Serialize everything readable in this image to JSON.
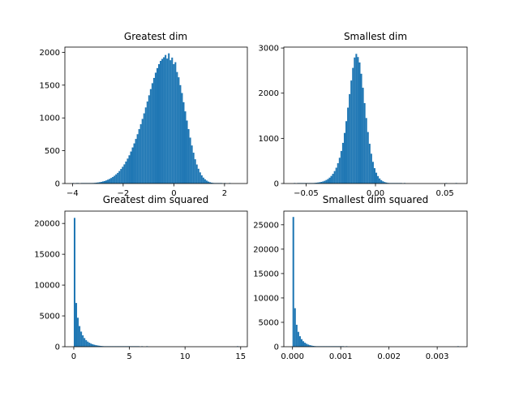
{
  "chart_data": [
    {
      "type": "bar",
      "title": "Greatest dim",
      "xlabel": "",
      "ylabel": "",
      "xlim": [
        -4.3,
        2.9
      ],
      "ylim": [
        0,
        2080
      ],
      "xticks": [
        {
          "v": -4,
          "label": "−4"
        },
        {
          "v": -2,
          "label": "−2"
        },
        {
          "v": 0,
          "label": "0"
        },
        {
          "v": 2,
          "label": "2"
        }
      ],
      "yticks": [
        {
          "v": 0,
          "label": "0"
        },
        {
          "v": 500,
          "label": "500"
        },
        {
          "v": 1000,
          "label": "1000"
        },
        {
          "v": 1500,
          "label": "1500"
        },
        {
          "v": 2000,
          "label": "2000"
        }
      ],
      "bin_start": -4.0,
      "bin_width": 0.065,
      "values": [
        2,
        0,
        1,
        1,
        0,
        2,
        1,
        3,
        2,
        4,
        5,
        7,
        8,
        10,
        13,
        16,
        20,
        25,
        32,
        38,
        47,
        58,
        70,
        84,
        100,
        118,
        140,
        162,
        190,
        222,
        255,
        292,
        335,
        380,
        430,
        488,
        550,
        612,
        680,
        752,
        830,
        905,
        985,
        1070,
        1160,
        1250,
        1345,
        1440,
        1530,
        1610,
        1690,
        1760,
        1820,
        1870,
        1900,
        1925,
        1960,
        1905,
        1985,
        1880,
        1920,
        1820,
        1850,
        1700,
        1620,
        1500,
        1380,
        1240,
        1100,
        960,
        830,
        700,
        580,
        470,
        370,
        290,
        225,
        170,
        125,
        90,
        65,
        45,
        30,
        20,
        13,
        9,
        5,
        3,
        2,
        1,
        1,
        0,
        1,
        0,
        0,
        1
      ]
    },
    {
      "type": "bar",
      "title": "Smallest dim",
      "xlabel": "",
      "ylabel": "",
      "xlim": [
        -0.066,
        0.066
      ],
      "ylim": [
        0,
        3020
      ],
      "xticks": [
        {
          "v": -0.05,
          "label": "−0.05"
        },
        {
          "v": 0,
          "label": "0.00"
        },
        {
          "v": 0.05,
          "label": "0.05"
        }
      ],
      "yticks": [
        {
          "v": 0,
          "label": "0"
        },
        {
          "v": 1000,
          "label": "1000"
        },
        {
          "v": 2000,
          "label": "2000"
        },
        {
          "v": 3000,
          "label": "3000"
        }
      ],
      "bin_start": -0.06,
      "bin_width": 0.0012,
      "values": [
        0,
        1,
        0,
        1,
        1,
        2,
        2,
        3,
        3,
        5,
        6,
        8,
        10,
        13,
        17,
        22,
        28,
        36,
        46,
        60,
        78,
        100,
        130,
        168,
        215,
        275,
        350,
        450,
        570,
        720,
        900,
        1120,
        1380,
        1680,
        1980,
        2280,
        2560,
        2790,
        2870,
        2800,
        2680,
        2430,
        2120,
        1780,
        1450,
        1140,
        880,
        660,
        480,
        340,
        240,
        165,
        112,
        75,
        50,
        33,
        22,
        14,
        9,
        6,
        4,
        3,
        2,
        1,
        1,
        1,
        0,
        1,
        0,
        0,
        0,
        0,
        0,
        0,
        0,
        0,
        0,
        0,
        0,
        0,
        0,
        0,
        0,
        0,
        0,
        0,
        0,
        0,
        0,
        0,
        0,
        0,
        1,
        0,
        0,
        0,
        0,
        0,
        1
      ]
    },
    {
      "type": "bar",
      "title": "Greatest dim squared",
      "xlabel": "",
      "ylabel": "",
      "xlim": [
        -0.8,
        15.6
      ],
      "ylim": [
        0,
        22000
      ],
      "xticks": [
        {
          "v": 0,
          "label": "0"
        },
        {
          "v": 5,
          "label": "5"
        },
        {
          "v": 10,
          "label": "10"
        },
        {
          "v": 15,
          "label": "15"
        }
      ],
      "yticks": [
        {
          "v": 0,
          "label": "0"
        },
        {
          "v": 5000,
          "label": "5000"
        },
        {
          "v": 10000,
          "label": "10000"
        },
        {
          "v": 15000,
          "label": "15000"
        },
        {
          "v": 20000,
          "label": "20000"
        }
      ],
      "bin_start": 0,
      "bin_width": 0.148,
      "values": [
        20900,
        7100,
        4700,
        3350,
        2450,
        1850,
        1400,
        1070,
        830,
        650,
        510,
        400,
        320,
        250,
        200,
        160,
        125,
        100,
        80,
        62,
        50,
        40,
        32,
        25,
        20,
        16,
        12,
        10,
        8,
        6,
        5,
        4,
        3,
        3,
        2,
        2,
        1,
        1,
        1,
        1,
        0,
        1,
        0,
        0,
        1,
        0,
        0,
        0,
        0,
        0,
        0,
        0,
        0,
        0,
        0,
        0,
        0,
        0,
        0,
        0,
        0,
        0,
        0,
        0,
        0,
        0,
        0,
        0,
        0,
        0,
        0,
        0,
        0,
        0,
        0,
        0,
        0,
        0,
        0,
        0,
        0,
        0,
        0,
        0,
        0,
        0,
        0,
        0,
        0,
        0,
        0,
        0,
        0,
        0,
        0,
        0,
        0,
        0,
        0,
        1
      ]
    },
    {
      "type": "bar",
      "title": "Smallest dim squared",
      "xlabel": "",
      "ylabel": "",
      "xlim": [
        -0.00018,
        0.00362
      ],
      "ylim": [
        0,
        27800
      ],
      "xticks": [
        {
          "v": 0,
          "label": "0.000"
        },
        {
          "v": 0.001,
          "label": "0.001"
        },
        {
          "v": 0.002,
          "label": "0.002"
        },
        {
          "v": 0.003,
          "label": "0.003"
        }
      ],
      "yticks": [
        {
          "v": 0,
          "label": "0"
        },
        {
          "v": 5000,
          "label": "5000"
        },
        {
          "v": 10000,
          "label": "10000"
        },
        {
          "v": 15000,
          "label": "15000"
        },
        {
          "v": 20000,
          "label": "20000"
        },
        {
          "v": 25000,
          "label": "25000"
        }
      ],
      "bin_start": 0,
      "bin_width": 3.45e-05,
      "values": [
        26600,
        7900,
        4500,
        3050,
        2150,
        1550,
        1120,
        820,
        600,
        440,
        320,
        235,
        170,
        125,
        92,
        68,
        50,
        37,
        27,
        20,
        15,
        11,
        8,
        6,
        4,
        3,
        2,
        2,
        1,
        1,
        1,
        0,
        1,
        0,
        0,
        0,
        0,
        0,
        0,
        0,
        0,
        0,
        0,
        0,
        0,
        0,
        0,
        0,
        0,
        0,
        0,
        0,
        0,
        0,
        0,
        0,
        0,
        0,
        0,
        0,
        0,
        0,
        0,
        0,
        0,
        0,
        0,
        0,
        0,
        0,
        0,
        0,
        0,
        0,
        0,
        0,
        0,
        0,
        0,
        0,
        0,
        0,
        0,
        0,
        0,
        0,
        0,
        0,
        0,
        0,
        0,
        0,
        0,
        0,
        0,
        0,
        0,
        0,
        0,
        1
      ]
    }
  ]
}
